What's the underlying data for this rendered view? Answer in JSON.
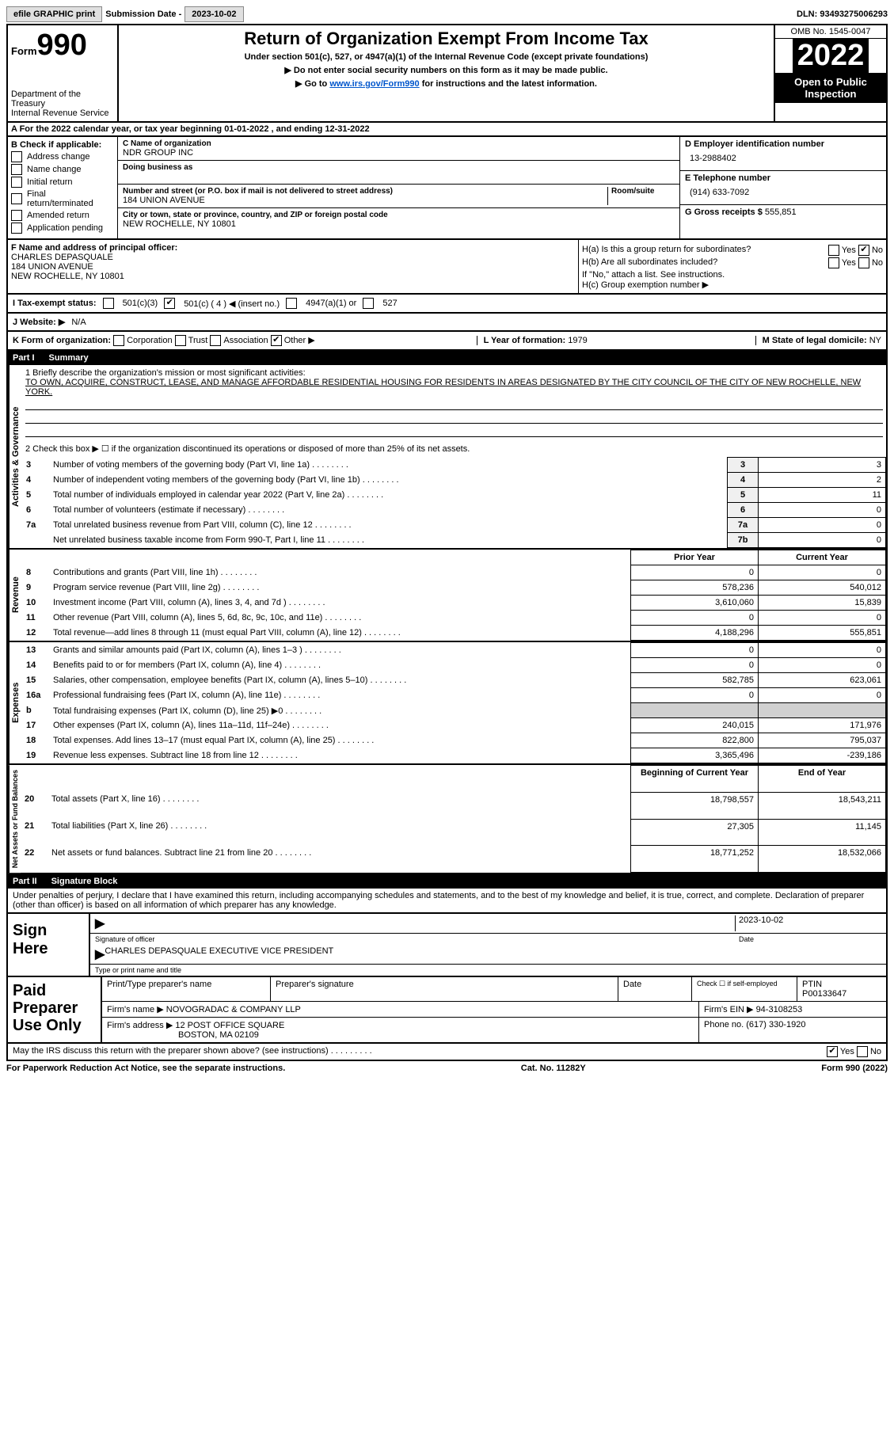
{
  "topbar": {
    "efile_btn": "efile GRAPHIC print",
    "sub_date_label": "Submission Date - ",
    "sub_date_val": "2023-10-02",
    "dln_label": "DLN: ",
    "dln_val": "93493275006293"
  },
  "header": {
    "form_word": "Form",
    "form_num": "990",
    "dept": "Department of the Treasury",
    "irs": "Internal Revenue Service",
    "title": "Return of Organization Exempt From Income Tax",
    "sub1": "Under section 501(c), 527, or 4947(a)(1) of the Internal Revenue Code (except private foundations)",
    "sub2": "▶ Do not enter social security numbers on this form as it may be made public.",
    "sub3": "▶ Go to www.irs.gov/Form990 for instructions and the latest information.",
    "link": "www.irs.gov/Form990",
    "omb": "OMB No. 1545-0047",
    "year": "2022",
    "open": "Open to Public Inspection"
  },
  "sectionA": "A For the 2022 calendar year, or tax year beginning 01-01-2022   , and ending 12-31-2022",
  "b": {
    "label": "B Check if applicable:",
    "addr": "Address change",
    "name": "Name change",
    "initial": "Initial return",
    "final": "Final return/terminated",
    "amended": "Amended return",
    "app": "Application pending"
  },
  "c": {
    "name_lbl": "C Name of organization",
    "name": "NDR GROUP INC",
    "dba_lbl": "Doing business as",
    "dba": "",
    "street_lbl": "Number and street (or P.O. box if mail is not delivered to street address)",
    "room_lbl": "Room/suite",
    "street": "184 UNION AVENUE",
    "city_lbl": "City or town, state or province, country, and ZIP or foreign postal code",
    "city": "NEW ROCHELLE, NY  10801"
  },
  "d": {
    "ein_lbl": "D Employer identification number",
    "ein": "13-2988402",
    "tel_lbl": "E Telephone number",
    "tel": "(914) 633-7092",
    "gross_lbl": "G Gross receipts $ ",
    "gross": "555,851"
  },
  "f": {
    "label": "F  Name and address of principal officer:",
    "name": "CHARLES DEPASQUALE",
    "addr1": "184 UNION AVENUE",
    "addr2": "NEW ROCHELLE, NY  10801"
  },
  "h": {
    "a_lbl": "H(a)  Is this a group return for subordinates?",
    "yes": "Yes",
    "no": "No",
    "b_lbl": "H(b)  Are all subordinates included?",
    "b_note": "If \"No,\" attach a list. See instructions.",
    "c_lbl": "H(c)  Group exemption number ▶"
  },
  "i": {
    "label": "I   Tax-exempt status:",
    "c3": "501(c)(3)",
    "c": "501(c) ( 4 ) ◀ (insert no.)",
    "a1": "4947(a)(1) or",
    "s527": "527"
  },
  "j": {
    "label": "J  Website: ▶",
    "val": "N/A"
  },
  "k": {
    "label": "K Form of organization:",
    "corp": "Corporation",
    "trust": "Trust",
    "assoc": "Association",
    "other": "Other ▶"
  },
  "l": {
    "lbl": "L Year of formation: ",
    "val": "1979"
  },
  "m": {
    "lbl": "M State of legal domicile: ",
    "val": "NY"
  },
  "part1": {
    "hdr": "Part I",
    "title": "Summary",
    "line1_lbl": "1  Briefly describe the organization's mission or most significant activities:",
    "mission": "TO OWN, ACQUIRE, CONSTRUCT, LEASE, AND MANAGE AFFORDABLE RESIDENTIAL HOUSING FOR RESIDENTS IN AREAS DESIGNATED BY THE CITY COUNCIL OF THE CITY OF NEW ROCHELLE, NEW YORK.",
    "line2": "2  Check this box ▶ ☐  if the organization discontinued its operations or disposed of more than 25% of its net assets.",
    "rows_ag": [
      {
        "n": "3",
        "t": "Number of voting members of the governing body (Part VI, line 1a)",
        "c": "3",
        "v": "3"
      },
      {
        "n": "4",
        "t": "Number of independent voting members of the governing body (Part VI, line 1b)",
        "c": "4",
        "v": "2"
      },
      {
        "n": "5",
        "t": "Total number of individuals employed in calendar year 2022 (Part V, line 2a)",
        "c": "5",
        "v": "11"
      },
      {
        "n": "6",
        "t": "Total number of volunteers (estimate if necessary)",
        "c": "6",
        "v": "0"
      },
      {
        "n": "7a",
        "t": "Total unrelated business revenue from Part VIII, column (C), line 12",
        "c": "7a",
        "v": "0"
      },
      {
        "n": " ",
        "t": "Net unrelated business taxable income from Form 990-T, Part I, line 11",
        "c": "7b",
        "v": "0"
      }
    ],
    "col_prior": "Prior Year",
    "col_curr": "Current Year",
    "rev_rows": [
      {
        "n": "8",
        "t": "Contributions and grants (Part VIII, line 1h)",
        "p": "0",
        "c": "0"
      },
      {
        "n": "9",
        "t": "Program service revenue (Part VIII, line 2g)",
        "p": "578,236",
        "c": "540,012"
      },
      {
        "n": "10",
        "t": "Investment income (Part VIII, column (A), lines 3, 4, and 7d )",
        "p": "3,610,060",
        "c": "15,839"
      },
      {
        "n": "11",
        "t": "Other revenue (Part VIII, column (A), lines 5, 6d, 8c, 9c, 10c, and 11e)",
        "p": "0",
        "c": "0"
      },
      {
        "n": "12",
        "t": "Total revenue—add lines 8 through 11 (must equal Part VIII, column (A), line 12)",
        "p": "4,188,296",
        "c": "555,851"
      }
    ],
    "exp_rows": [
      {
        "n": "13",
        "t": "Grants and similar amounts paid (Part IX, column (A), lines 1–3 )",
        "p": "0",
        "c": "0"
      },
      {
        "n": "14",
        "t": "Benefits paid to or for members (Part IX, column (A), line 4)",
        "p": "0",
        "c": "0"
      },
      {
        "n": "15",
        "t": "Salaries, other compensation, employee benefits (Part IX, column (A), lines 5–10)",
        "p": "582,785",
        "c": "623,061"
      },
      {
        "n": "16a",
        "t": "Professional fundraising fees (Part IX, column (A), line 11e)",
        "p": "0",
        "c": "0"
      },
      {
        "n": "b",
        "t": "Total fundraising expenses (Part IX, column (D), line 25) ▶0",
        "p": "",
        "c": "",
        "gray": true
      },
      {
        "n": "17",
        "t": "Other expenses (Part IX, column (A), lines 11a–11d, 11f–24e)",
        "p": "240,015",
        "c": "171,976"
      },
      {
        "n": "18",
        "t": "Total expenses. Add lines 13–17 (must equal Part IX, column (A), line 25)",
        "p": "822,800",
        "c": "795,037"
      },
      {
        "n": "19",
        "t": "Revenue less expenses. Subtract line 18 from line 12",
        "p": "3,365,496",
        "c": "-239,186"
      }
    ],
    "col_beg": "Beginning of Current Year",
    "col_end": "End of Year",
    "na_rows": [
      {
        "n": "20",
        "t": "Total assets (Part X, line 16)",
        "p": "18,798,557",
        "c": "18,543,211"
      },
      {
        "n": "21",
        "t": "Total liabilities (Part X, line 26)",
        "p": "27,305",
        "c": "11,145"
      },
      {
        "n": "22",
        "t": "Net assets or fund balances. Subtract line 21 from line 20",
        "p": "18,771,252",
        "c": "18,532,066"
      }
    ],
    "side_ag": "Activities & Governance",
    "side_rev": "Revenue",
    "side_exp": "Expenses",
    "side_na": "Net Assets or Fund Balances"
  },
  "part2": {
    "hdr": "Part II",
    "title": "Signature Block",
    "perjury": "Under penalties of perjury, I declare that I have examined this return, including accompanying schedules and statements, and to the best of my knowledge and belief, it is true, correct, and complete. Declaration of preparer (other than officer) is based on all information of which preparer has any knowledge.",
    "sign_here": "Sign Here",
    "sig_officer": "Signature of officer",
    "sig_date": "2023-10-02",
    "date_lbl": "Date",
    "officer_name": "CHARLES DEPASQUALE  EXECUTIVE VICE PRESIDENT",
    "type_name_lbl": "Type or print name and title"
  },
  "paid": {
    "lbl": "Paid Preparer Use Only",
    "print_lbl": "Print/Type preparer's name",
    "sig_lbl": "Preparer's signature",
    "date_lbl": "Date",
    "check_lbl": "Check ☐ if self-employed",
    "ptin_lbl": "PTIN",
    "ptin": "P00133647",
    "firm_name_lbl": "Firm's name     ▶",
    "firm_name": "NOVOGRADAC & COMPANY LLP",
    "firm_ein_lbl": "Firm's EIN ▶",
    "firm_ein": "94-3108253",
    "firm_addr_lbl": "Firm's address ▶",
    "firm_addr1": "12 POST OFFICE SQUARE",
    "firm_addr2": "BOSTON, MA  02109",
    "phone_lbl": "Phone no. ",
    "phone": "(617) 330-1920"
  },
  "discuss": {
    "q": "May the IRS discuss this return with the preparer shown above? (see instructions)",
    "yes": "Yes",
    "no": "No"
  },
  "footer": {
    "left": "For Paperwork Reduction Act Notice, see the separate instructions.",
    "mid": "Cat. No. 11282Y",
    "right": "Form 990 (2022)"
  }
}
